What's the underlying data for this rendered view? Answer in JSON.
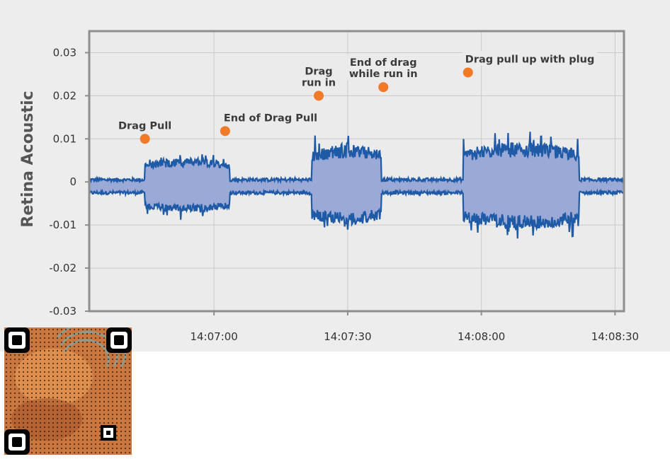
{
  "chart_data": {
    "type": "line",
    "ylabel": "Retina Acoustic",
    "xlabel": "",
    "title": "",
    "ylim": [
      -0.03,
      0.035
    ],
    "yticks": [
      0.03,
      0.02,
      0.01,
      0,
      -0.01,
      -0.02,
      -0.03
    ],
    "ytick_labels": [
      "0.03",
      "0.02",
      "0.01",
      "0",
      "-0.01",
      "-0.02",
      "-0.03"
    ],
    "xlim_seconds": [
      -28,
      92
    ],
    "xticks_seconds": [
      0,
      30,
      60,
      90
    ],
    "xtick_labels": [
      "14:07:00",
      "14:07:30",
      "14:08:00",
      "14:08:30"
    ],
    "grid": true,
    "envelope_segments": [
      {
        "t_start": -28,
        "t_end": -15.5,
        "upper": 0.0005,
        "lower": -0.0025
      },
      {
        "t_start": -15.5,
        "t_end": 3.5,
        "upper": 0.0055,
        "lower": -0.007
      },
      {
        "t_start": 3.5,
        "t_end": 22,
        "upper": 0.0005,
        "lower": -0.0025
      },
      {
        "t_start": 22,
        "t_end": 37.5,
        "upper": 0.0088,
        "lower": -0.01
      },
      {
        "t_start": 37.5,
        "t_end": 56,
        "upper": 0.0005,
        "lower": -0.0025
      },
      {
        "t_start": 56,
        "t_end": 82,
        "upper": 0.0092,
        "lower": -0.011
      },
      {
        "t_start": 82,
        "t_end": 92,
        "upper": 0.0005,
        "lower": -0.0025
      }
    ],
    "series_color": "#1f5aa6",
    "fill_color": "#9aa9d6",
    "annotations": [
      {
        "lines": [
          "Drag Pull"
        ],
        "x": -15.5,
        "y": 0.01
      },
      {
        "lines": [
          "End of Drag Pull"
        ],
        "x": 2.5,
        "y": 0.0118
      },
      {
        "lines": [
          "Drag",
          "run in"
        ],
        "x": 23.5,
        "y": 0.02
      },
      {
        "lines": [
          "End of drag",
          "while run in"
        ],
        "x": 38,
        "y": 0.022
      },
      {
        "lines": [
          "Drag pull up with plug"
        ],
        "x": 57,
        "y": 0.0254
      }
    ],
    "annotation_color": "#f07a28"
  },
  "qr_label": "QR code"
}
